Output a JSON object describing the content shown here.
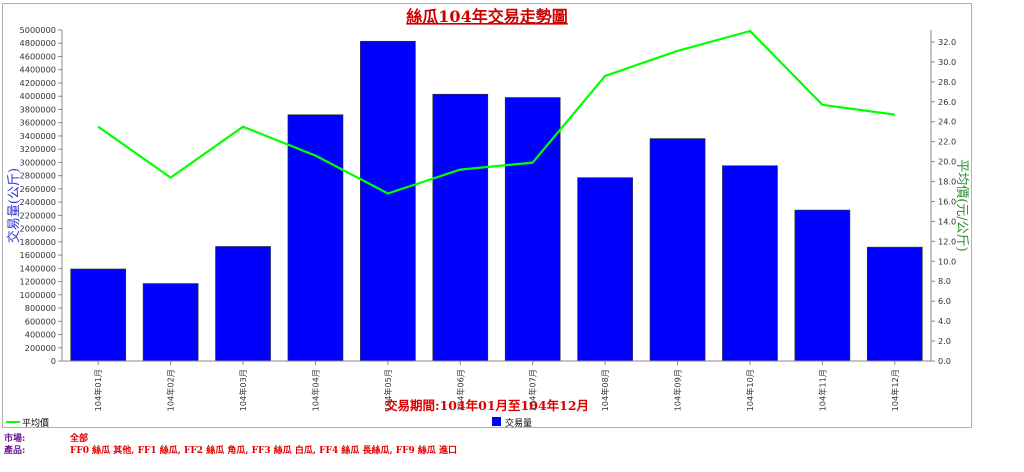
{
  "chart_data": {
    "type": "bar+line",
    "title": "絲瓜104年交易走勢圖",
    "subtitle": "交易期間:104年01月至104年12月",
    "categories": [
      "104年01月",
      "104年02月",
      "104年03月",
      "104年04月",
      "104年05月",
      "104年06月",
      "104年07月",
      "104年08月",
      "104年09月",
      "104年10月",
      "104年11月",
      "104年12月"
    ],
    "series": [
      {
        "name": "交易量",
        "type": "bar",
        "axis": "left",
        "color": "#0000ff",
        "values": [
          1390000,
          1170000,
          1730000,
          3720000,
          4830000,
          4030000,
          3980000,
          2770000,
          3360000,
          2950000,
          2280000,
          1720000
        ]
      },
      {
        "name": "平均價",
        "type": "line",
        "axis": "right",
        "color": "#00ff00",
        "values": [
          23.5,
          18.4,
          23.5,
          20.6,
          16.8,
          19.2,
          19.9,
          28.6,
          31.1,
          33.1,
          25.7,
          24.7
        ]
      }
    ],
    "ylabel_left": "交易量(公斤)",
    "ylabel_right": "平均價(元/公斤)",
    "ylim_left": [
      0,
      5000000
    ],
    "ylim_right": [
      0,
      33.2
    ],
    "yticks_left": [
      "0",
      "200000",
      "400000",
      "600000",
      "800000",
      "1000000",
      "1200000",
      "1400000",
      "1600000",
      "1800000",
      "2000000",
      "2200000",
      "2400000",
      "2600000",
      "2800000",
      "3000000",
      "3200000",
      "3400000",
      "3600000",
      "3800000",
      "4000000",
      "4200000",
      "4400000",
      "4600000",
      "4800000",
      "5000000"
    ],
    "yticks_right": [
      "0.0",
      "2.0",
      "4.0",
      "6.0",
      "8.0",
      "10.0",
      "12.0",
      "14.0",
      "16.0",
      "18.0",
      "20.0",
      "22.0",
      "24.0",
      "26.0",
      "28.0",
      "30.0",
      "32.0"
    ],
    "grid": false,
    "legend": "bottom"
  },
  "footer": {
    "market_label": "市場:",
    "market_value": "全部",
    "product_label": "產品:",
    "product_value": "FF0 絲瓜 其他, FF1 絲瓜, FF2 絲瓜 角瓜, FF3 絲瓜 白瓜, FF4 絲瓜 長絲瓜, FF9 絲瓜 進口"
  }
}
